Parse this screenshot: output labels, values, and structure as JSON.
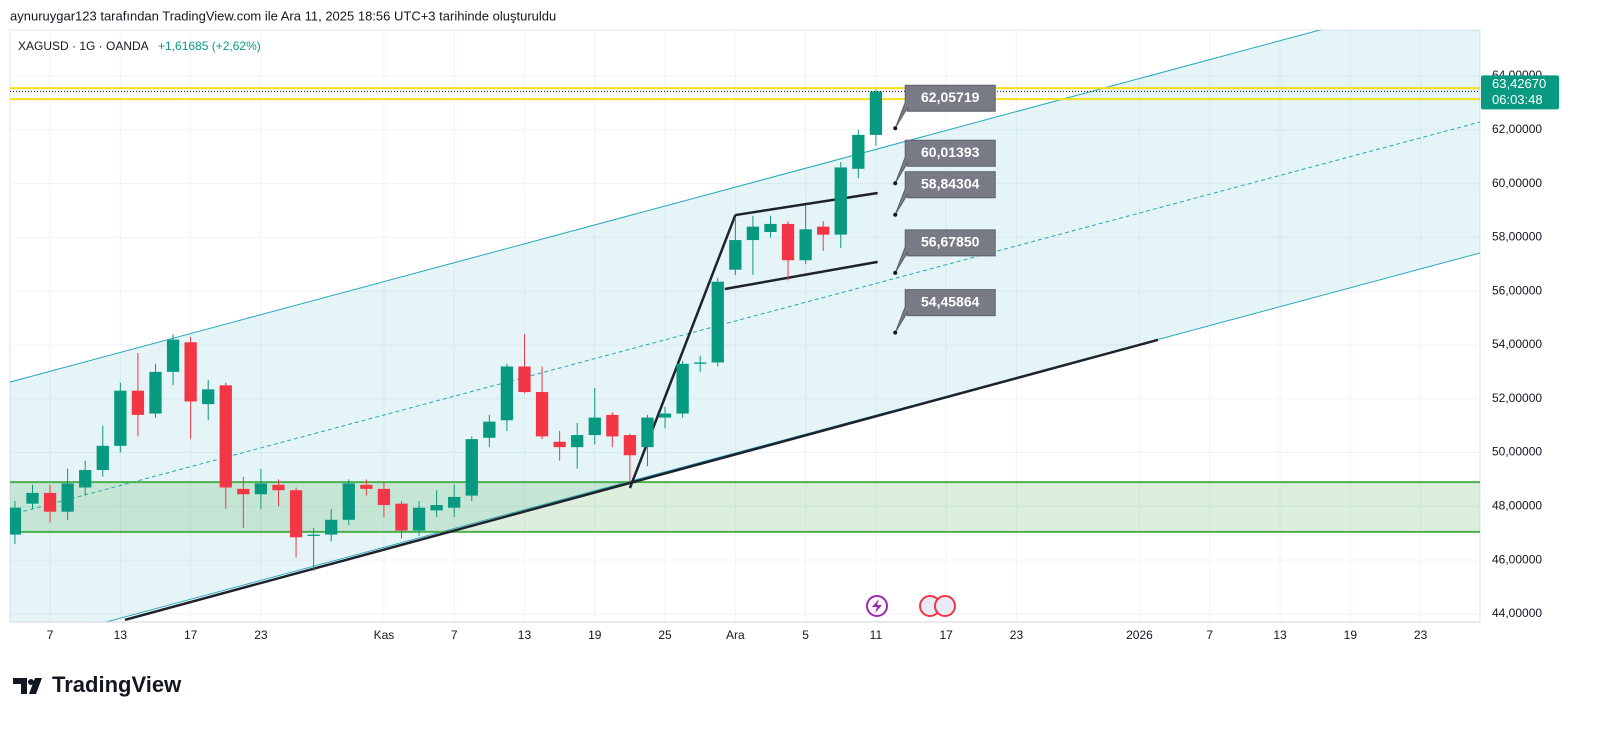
{
  "header": {
    "credit": "aynuruygar123 tarafından TradingView.com ile Ara 11, 2025 18:56 UTC+3 tarihinde oluşturuldu",
    "symbol": "XAGUSD · 1G · OANDA",
    "change": "+1,61685 (+2,62%)",
    "logo": "TradingView"
  },
  "chart_data": {
    "type": "candlestick",
    "up_color": "#089981",
    "down_color": "#f23645",
    "open": [
      46.95,
      48.1,
      48.5,
      47.8,
      48.7,
      49.35,
      50.25,
      52.3,
      51.45,
      53.0,
      54.1,
      51.8,
      52.5,
      48.65,
      48.45,
      48.8,
      48.6,
      46.9,
      46.95,
      47.5,
      48.8,
      48.65,
      48.1,
      47.1,
      47.85,
      47.95,
      48.4,
      50.55,
      51.2,
      53.2,
      52.25,
      50.4,
      50.2,
      50.65,
      51.4,
      50.65,
      50.2,
      51.3,
      51.45,
      53.3,
      53.35,
      56.8,
      57.9,
      58.2,
      58.5,
      57.15,
      58.4,
      58.1,
      60.55,
      61.81
    ],
    "high": [
      48.2,
      48.8,
      48.8,
      49.4,
      49.7,
      51.0,
      52.6,
      53.7,
      53.3,
      54.4,
      54.3,
      52.7,
      52.6,
      49.1,
      49.4,
      49.0,
      48.7,
      47.2,
      47.9,
      49.0,
      49.0,
      48.9,
      48.2,
      48.2,
      48.6,
      48.8,
      50.6,
      51.4,
      53.3,
      54.4,
      53.2,
      50.8,
      51.1,
      52.4,
      51.5,
      50.7,
      51.4,
      51.7,
      53.4,
      53.6,
      56.5,
      58.7,
      58.8,
      58.8,
      58.6,
      59.2,
      58.6,
      60.8,
      62.0,
      63.5
    ],
    "low": [
      46.6,
      47.9,
      47.4,
      47.5,
      48.4,
      49.1,
      50.0,
      50.6,
      51.3,
      52.5,
      50.5,
      51.2,
      47.9,
      47.2,
      47.9,
      48.0,
      46.1,
      45.6,
      46.7,
      47.3,
      48.4,
      47.6,
      46.8,
      46.9,
      47.6,
      47.6,
      48.2,
      50.2,
      50.8,
      52.2,
      50.5,
      49.7,
      49.4,
      50.3,
      50.2,
      48.9,
      49.5,
      50.9,
      51.3,
      53.0,
      53.2,
      56.6,
      56.6,
      58.0,
      56.4,
      57.0,
      57.5,
      57.6,
      60.2,
      61.4
    ],
    "close": [
      47.95,
      48.5,
      47.8,
      48.85,
      49.35,
      50.25,
      52.3,
      51.4,
      53.0,
      54.2,
      51.9,
      52.35,
      48.7,
      48.45,
      48.85,
      48.6,
      46.85,
      46.95,
      47.5,
      48.85,
      48.65,
      48.05,
      47.1,
      47.95,
      48.05,
      48.35,
      50.5,
      51.15,
      53.2,
      52.25,
      50.6,
      50.2,
      50.65,
      51.3,
      50.6,
      49.9,
      51.3,
      51.45,
      53.3,
      53.35,
      56.35,
      57.9,
      58.4,
      58.5,
      57.15,
      58.3,
      58.1,
      60.6,
      61.81,
      63.4267
    ],
    "xlim": [
      -0.28,
      83.38
    ],
    "ylim": [
      43.7,
      65.71
    ],
    "xticks": [
      {
        "value": 2,
        "label": "7"
      },
      {
        "value": 6,
        "label": "13"
      },
      {
        "value": 10,
        "label": "17"
      },
      {
        "value": 14,
        "label": "23"
      },
      {
        "value": 21,
        "label": "Kas"
      },
      {
        "value": 25,
        "label": "7"
      },
      {
        "value": 29,
        "label": "13"
      },
      {
        "value": 33,
        "label": "19"
      },
      {
        "value": 37,
        "label": "25"
      },
      {
        "value": 41,
        "label": "Ara"
      },
      {
        "value": 45,
        "label": "5"
      },
      {
        "value": 49,
        "label": "11"
      },
      {
        "value": 53,
        "label": "17"
      },
      {
        "value": 57,
        "label": "23"
      },
      {
        "value": 64,
        "label": "2026"
      },
      {
        "value": 68,
        "label": "7"
      },
      {
        "value": 72,
        "label": "13"
      },
      {
        "value": 76,
        "label": "19"
      },
      {
        "value": 80,
        "label": "23"
      }
    ],
    "yticks": [
      {
        "value": 44,
        "label": "44,00000"
      },
      {
        "value": 46,
        "label": "46,00000"
      },
      {
        "value": 48,
        "label": "48,00000"
      },
      {
        "value": 50,
        "label": "50,00000"
      },
      {
        "value": 52,
        "label": "52,00000"
      },
      {
        "value": 54,
        "label": "54,00000"
      },
      {
        "value": 56,
        "label": "56,00000"
      },
      {
        "value": 58,
        "label": "58,00000"
      },
      {
        "value": 60,
        "label": "60,00000"
      },
      {
        "value": 62,
        "label": "62,00000"
      },
      {
        "value": 64,
        "label": "64,00000"
      }
    ],
    "grid": true,
    "last_price": {
      "value": 63.4267,
      "label": "63,42670",
      "countdown": "06:03:48"
    },
    "horizontal_lines": {
      "color": "#f5de1b",
      "values": [
        63.55,
        63.14
      ]
    },
    "zone": {
      "color": "#4caf50",
      "range": [
        47.05,
        48.9
      ]
    },
    "channel": {
      "color": "#26a8bb",
      "x": [
        -0.28,
        83.38
      ],
      "upper": [
        52.62,
        67.31
      ],
      "middle": [
        47.68,
        62.29
      ],
      "lower": [
        42.74,
        57.42
      ]
    },
    "trend_lines": {
      "color": "#1e222d",
      "lines": [
        [
          [
            6.26,
            43.78
          ],
          [
            65.05,
            54.19
          ]
        ],
        [
          [
            35.0,
            48.68
          ],
          [
            41.0,
            58.83
          ]
        ],
        [
          [
            41.0,
            58.83
          ],
          [
            49.1,
            59.65
          ]
        ],
        [
          [
            40.4,
            56.08
          ],
          [
            49.1,
            57.09
          ]
        ]
      ]
    },
    "annotations": {
      "x": 50.1,
      "items": [
        {
          "value": 62.05719,
          "label": "62,05719"
        },
        {
          "value": 60.01393,
          "label": "60,01393"
        },
        {
          "value": 58.84304,
          "label": "58,84304"
        },
        {
          "value": 56.6785,
          "label": "56,67850"
        },
        {
          "value": 54.45864,
          "label": "54,45864"
        }
      ]
    }
  }
}
